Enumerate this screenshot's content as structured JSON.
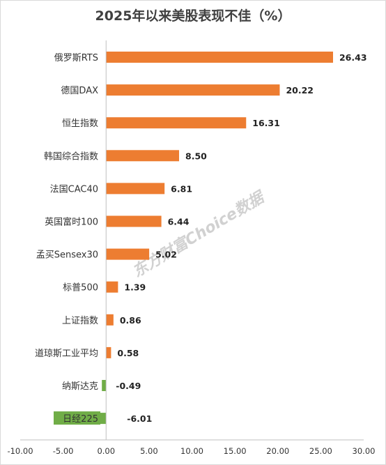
{
  "chart_data": {
    "type": "bar",
    "orientation": "horizontal",
    "title": "2025年以来美股表现不佳（%）",
    "categories": [
      "俄罗斯RTS",
      "德国DAX",
      "恒生指数",
      "韩国综合指数",
      "法国CAC40",
      "英国富时100",
      "孟买Sensex30",
      "标普500",
      "上证指数",
      "道琼斯工业平均",
      "纳斯达克",
      "日经225"
    ],
    "values": [
      26.43,
      20.22,
      16.31,
      8.5,
      6.81,
      6.44,
      5.02,
      1.39,
      0.86,
      0.58,
      -0.49,
      -6.01
    ],
    "value_labels": [
      "26.43",
      "20.22",
      "16.31",
      "8.50",
      "6.81",
      "6.44",
      "5.02",
      "1.39",
      "0.86",
      "0.58",
      "-0.49",
      "-6.01"
    ],
    "xlim": [
      -10,
      30
    ],
    "x_ticks": [
      "-10.00",
      "-5.00",
      "0.00",
      "5.00",
      "10.00",
      "15.00",
      "20.00",
      "25.00",
      "30.00"
    ],
    "grid": false,
    "colors": {
      "positive": "#ED7D31",
      "negative": "#70AD47",
      "highlight_label_bg": "#70AD47"
    },
    "highlighted_category": "日经225",
    "watermark": "东方财富Choice数据"
  }
}
